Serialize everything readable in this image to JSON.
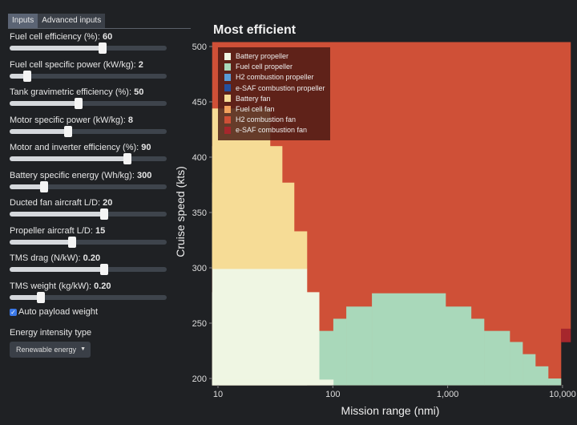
{
  "tabs": [
    {
      "label": "Inputs",
      "active": true
    },
    {
      "label": "Advanced inputs",
      "active": false
    }
  ],
  "sliders": [
    {
      "label": "Fuel cell efficiency (%): ",
      "value": "60",
      "fraction": 0.59
    },
    {
      "label": "Fuel cell specific power (kW/kg): ",
      "value": "2",
      "fraction": 0.11
    },
    {
      "label": "Tank gravimetric efficiency (%): ",
      "value": "50",
      "fraction": 0.44
    },
    {
      "label": "Motor specific power (kW/kg): ",
      "value": "8",
      "fraction": 0.37
    },
    {
      "label": "Motor and inverter efficiency (%): ",
      "value": "90",
      "fraction": 0.75
    },
    {
      "label": "Battery specific energy (Wh/kg): ",
      "value": "300",
      "fraction": 0.22
    },
    {
      "label": "Ducted fan aircraft L/D: ",
      "value": "20",
      "fraction": 0.6
    },
    {
      "label": "Propeller aircraft L/D: ",
      "value": "15",
      "fraction": 0.4
    },
    {
      "label": "TMS drag (N/kW): ",
      "value": "0.20",
      "fraction": 0.6
    },
    {
      "label": "TMS weight (kg/kW): ",
      "value": "0.20",
      "fraction": 0.2
    }
  ],
  "auto_payload": {
    "label": "Auto payload weight",
    "checked": true
  },
  "energy_intensity": {
    "label": "Energy intensity type",
    "selected": "Renewable energy"
  },
  "chart_data": {
    "type": "heatmap",
    "title": "Most efficient",
    "xlabel": "Mission range (nmi)",
    "ylabel": "Cruise speed (kts)",
    "xscale": "log",
    "xlim": [
      8.9,
      11750
    ],
    "ylim": [
      194,
      504
    ],
    "xticks": [
      {
        "v": 10,
        "label": "10"
      },
      {
        "v": 100,
        "label": "100"
      },
      {
        "v": 1000,
        "label": "1,000"
      },
      {
        "v": 10000,
        "label": "10,000"
      }
    ],
    "yticks": [
      {
        "v": 200,
        "label": "200"
      },
      {
        "v": 250,
        "label": "250"
      },
      {
        "v": 300,
        "label": "300"
      },
      {
        "v": 350,
        "label": "350"
      },
      {
        "v": 400,
        "label": "400"
      },
      {
        "v": 450,
        "label": "450"
      },
      {
        "v": 500,
        "label": "500"
      }
    ],
    "legend_position": "top-left",
    "categories": [
      {
        "name": "Battery propeller",
        "color": "#eff6e3"
      },
      {
        "name": "Fuel cell propeller",
        "color": "#a9d8ba"
      },
      {
        "name": "H2 combustion propeller",
        "color": "#5a9bd6"
      },
      {
        "name": "e-SAF combustion propeller",
        "color": "#24509e"
      },
      {
        "name": "Battery fan",
        "color": "#f6dc96"
      },
      {
        "name": "Fuel cell fan",
        "color": "#f1a25d"
      },
      {
        "name": "H2 combustion fan",
        "color": "#cf5037"
      },
      {
        "name": "e-SAF combustion fan",
        "color": "#a6272c"
      }
    ],
    "regions": [
      {
        "cat": 6,
        "range": [
          8.9,
          11750
        ],
        "speed": [
          245,
          504
        ]
      },
      {
        "cat": 6,
        "range": [
          8.9,
          9700
        ],
        "speed": [
          194,
          245
        ]
      },
      {
        "cat": 7,
        "range": [
          9700,
          11750
        ],
        "speed": [
          233,
          245
        ]
      },
      {
        "cat": 4,
        "range": [
          8.9,
          28.4
        ],
        "speed": [
          299,
          444
        ]
      },
      {
        "cat": 4,
        "range": [
          8.9,
          36.2
        ],
        "speed": [
          299,
          410
        ]
      },
      {
        "cat": 4,
        "range": [
          8.9,
          46
        ],
        "speed": [
          299,
          377
        ]
      },
      {
        "cat": 4,
        "range": [
          8.9,
          59.5
        ],
        "speed": [
          299,
          333
        ]
      },
      {
        "cat": 1,
        "range": [
          76,
          101
        ],
        "speed": [
          194,
          243
        ]
      },
      {
        "cat": 1,
        "range": [
          101,
          131
        ],
        "speed": [
          194,
          254
        ]
      },
      {
        "cat": 1,
        "range": [
          131,
          219
        ],
        "speed": [
          194,
          265
        ]
      },
      {
        "cat": 1,
        "range": [
          219,
          959
        ],
        "speed": [
          194,
          277
        ]
      },
      {
        "cat": 1,
        "range": [
          959,
          1600
        ],
        "speed": [
          194,
          265
        ]
      },
      {
        "cat": 1,
        "range": [
          1600,
          2075
        ],
        "speed": [
          194,
          254
        ]
      },
      {
        "cat": 1,
        "range": [
          2075,
          3470
        ],
        "speed": [
          194,
          243
        ]
      },
      {
        "cat": 1,
        "range": [
          3470,
          4490
        ],
        "speed": [
          194,
          233
        ]
      },
      {
        "cat": 1,
        "range": [
          4490,
          5800
        ],
        "speed": [
          194,
          222
        ]
      },
      {
        "cat": 1,
        "range": [
          5800,
          7500
        ],
        "speed": [
          194,
          211
        ]
      },
      {
        "cat": 1,
        "range": [
          7500,
          9700
        ],
        "speed": [
          194,
          200
        ]
      },
      {
        "cat": 0,
        "range": [
          8.9,
          59.5
        ],
        "speed": [
          194,
          299
        ]
      },
      {
        "cat": 0,
        "range": [
          8.9,
          76
        ],
        "speed": [
          194,
          278
        ]
      },
      {
        "cat": 0,
        "range": [
          8.9,
          101
        ],
        "speed": [
          194,
          199
        ]
      }
    ]
  }
}
